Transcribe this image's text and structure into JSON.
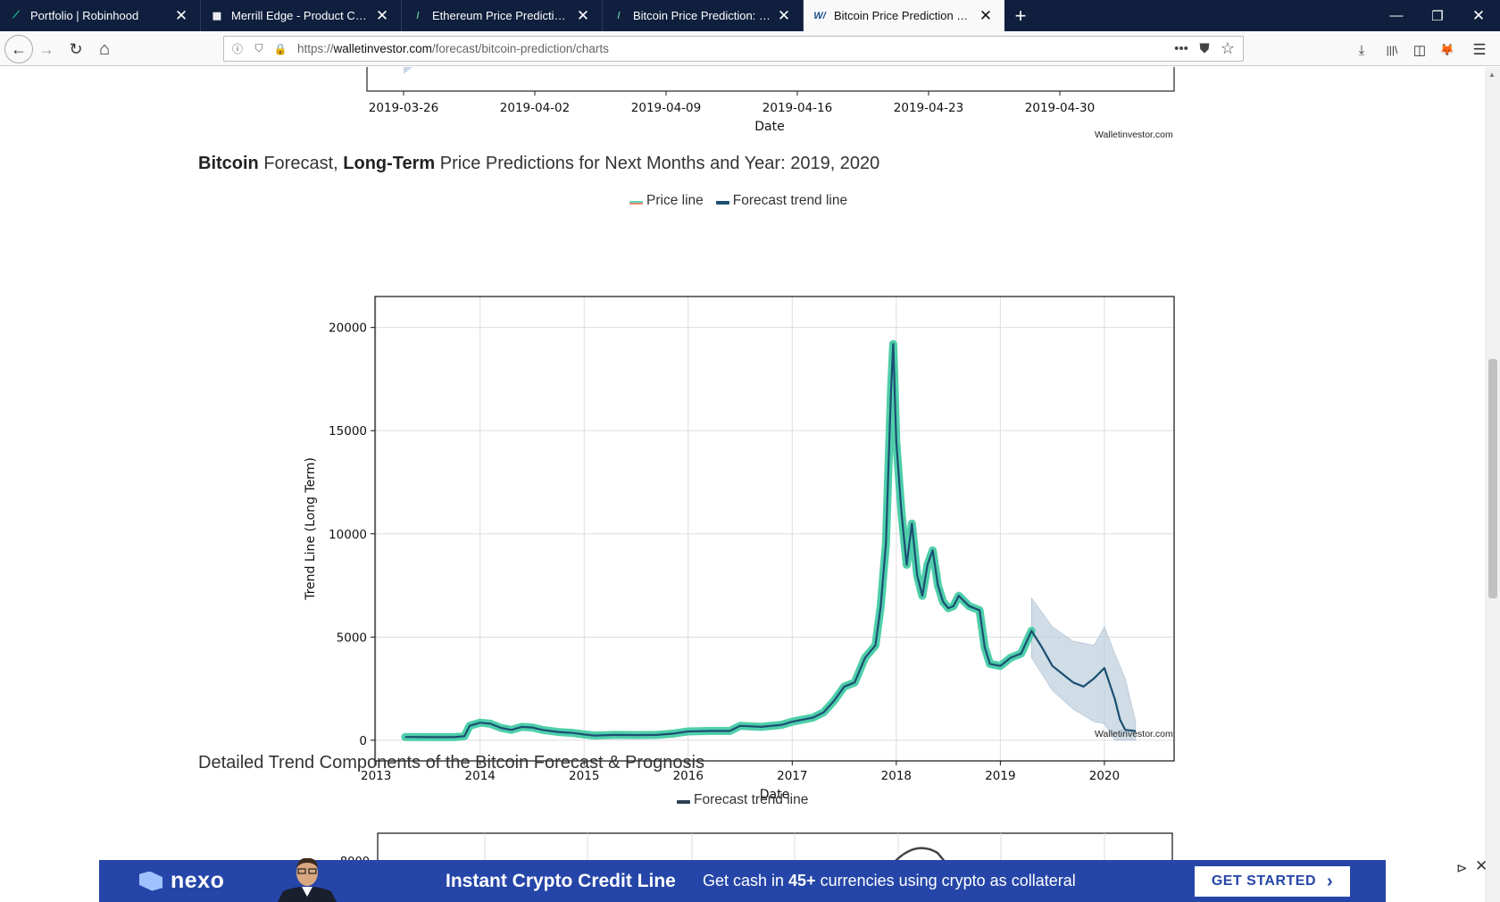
{
  "tabs": [
    {
      "title": "Portfolio | Robinhood",
      "favicon": "robinhood-feather-icon",
      "color": "#21ce99"
    },
    {
      "title": "Merrill Edge - Product Class",
      "favicon": "merrill-bull-icon",
      "color": "#ffffff"
    },
    {
      "title": "Ethereum Price Prediction: down",
      "favicon": "walletinvestor-icon",
      "color": "#5cc89d"
    },
    {
      "title": "Bitcoin Price Prediction: down t",
      "favicon": "walletinvestor-icon",
      "color": "#5cc89d"
    },
    {
      "title": "Bitcoin Price Prediction Charts",
      "favicon": "walletinvestor-icon",
      "color": "#1b4f8a",
      "active": true
    }
  ],
  "favicon_glyphs": {
    "robinhood": "⟋",
    "merrill": "▦",
    "wi": "/",
    "wi_active": "W/"
  },
  "address": {
    "prefix": "https://",
    "host": "walletinvestor.com",
    "path": "/forecast/bitcoin-prediction/charts"
  },
  "glyphs": {
    "close": "✕",
    "plus": "+",
    "minimize": "—",
    "restore": "❐",
    "back": "←",
    "forward": "→",
    "reload": "↻",
    "home": "⌂",
    "info": "ⓘ",
    "shield": "⛉",
    "lock": "🔒",
    "more": "•••",
    "pocket": "⛊",
    "star": "☆",
    "download": "⤓",
    "library": "|||\\",
    "sidebar": "◫",
    "fox": "🦊",
    "menu": "☰",
    "scroll_up": "▲",
    "chevron": "›",
    "ad_choice": "⊳"
  },
  "top_chart": {
    "ticks": [
      "2019-03-26",
      "2019-04-02",
      "2019-04-09",
      "2019-04-16",
      "2019-04-23",
      "2019-04-30"
    ],
    "xlabel": "Date",
    "credit": "Walletinvestor.com"
  },
  "section1": {
    "b1": "Bitcoin",
    "t1": " Forecast, ",
    "b2": "Long-Term",
    "t2": " Price Predictions for Next Months and Year: 2019, 2020"
  },
  "legend1": {
    "price": "Price line",
    "trend": "Forecast trend line",
    "price_colors": [
      "#5cd6b4",
      "#f08a6e"
    ],
    "trend_color": "#1b4f72"
  },
  "chart_data": [
    {
      "type": "line",
      "x": [
        2013.28,
        2013.5,
        2013.75,
        2013.85,
        2013.9,
        2014.0,
        2014.1,
        2014.2,
        2014.3,
        2014.4,
        2014.5,
        2014.6,
        2014.75,
        2014.9,
        2015.0,
        2015.1,
        2015.3,
        2015.5,
        2015.7,
        2015.85,
        2016.0,
        2016.2,
        2016.4,
        2016.5,
        2016.7,
        2016.9,
        2017.0,
        2017.1,
        2017.2,
        2017.3,
        2017.4,
        2017.5,
        2017.6,
        2017.7,
        2017.8,
        2017.85,
        2017.9,
        2017.95,
        2017.97,
        2018.0,
        2018.05,
        2018.1,
        2018.15,
        2018.2,
        2018.25,
        2018.3,
        2018.35,
        2018.4,
        2018.45,
        2018.5,
        2018.55,
        2018.6,
        2018.7,
        2018.8,
        2018.85,
        2018.9,
        2019.0,
        2019.1,
        2019.2,
        2019.3,
        2019.4,
        2019.5,
        2019.6,
        2019.7,
        2019.8,
        2019.9,
        2020.0,
        2020.1,
        2020.15,
        2020.2,
        2020.3
      ],
      "series": [
        {
          "name": "Forecast trend line",
          "values": [
            160,
            150,
            150,
            200,
            700,
            850,
            800,
            600,
            500,
            650,
            620,
            500,
            400,
            350,
            280,
            230,
            260,
            250,
            260,
            320,
            430,
            450,
            450,
            700,
            650,
            750,
            900,
            1000,
            1100,
            1350,
            1900,
            2600,
            2800,
            4000,
            4600,
            6500,
            9500,
            17000,
            19200,
            14500,
            11000,
            8500,
            10500,
            8000,
            7000,
            8500,
            9200,
            7500,
            6700,
            6400,
            6500,
            7000,
            6500,
            6300,
            4500,
            3700,
            3600,
            4000,
            4200,
            5300,
            4500,
            3600,
            3200,
            2800,
            2600,
            3000,
            3500,
            2000,
            1000,
            500,
            450
          ]
        }
      ],
      "confidence_band": {
        "x": [
          2019.3,
          2019.5,
          2019.7,
          2019.9,
          2020.0,
          2020.1,
          2020.2,
          2020.3
        ],
        "upper": [
          6900,
          5500,
          4800,
          4600,
          5500,
          4200,
          3000,
          900
        ],
        "lower": [
          4000,
          2400,
          1500,
          900,
          800,
          0,
          0,
          0
        ]
      },
      "ylabel": "Trend Line (Long Term)",
      "xlabel": "Date",
      "xticks": [
        2013,
        2014,
        2015,
        2016,
        2017,
        2018,
        2019,
        2020
      ],
      "yticks": [
        0,
        5000,
        10000,
        15000,
        20000
      ],
      "xlim": [
        2012.99,
        2020.67
      ],
      "ylim": [
        -1000,
        21500
      ],
      "grid": true,
      "credit": "Walletinvestor.com"
    }
  ],
  "section2": {
    "title": "Detailed Trend Components of the Bitcoin Forecast & Prognosis"
  },
  "legend2": {
    "trend": "Forecast trend line",
    "color": "#2c3e50"
  },
  "bottom_chart": {
    "ytick": "8000"
  },
  "ad": {
    "brand": "nexo",
    "headline": "Instant Crypto Credit Line",
    "sub_pre": "Get cash in ",
    "sub_bold": "45+",
    "sub_post": " currencies using crypto as collateral",
    "cta": "GET STARTED"
  }
}
